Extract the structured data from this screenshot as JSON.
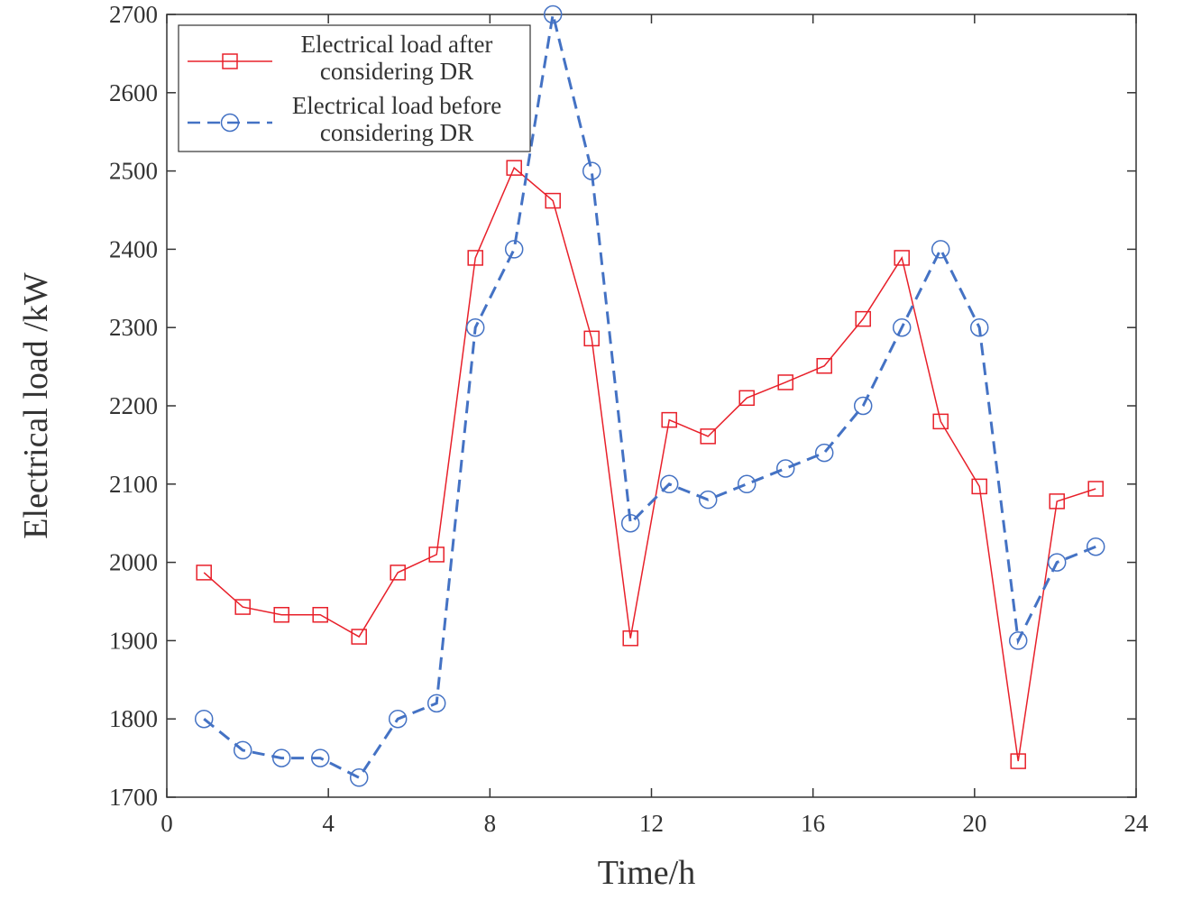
{
  "chart_data": {
    "type": "line",
    "xlabel": "Time/h",
    "ylabel": "Electrical load /kW",
    "x": [
      0.92,
      1.88,
      2.84,
      3.8,
      4.76,
      5.72,
      6.68,
      7.64,
      8.6,
      9.56,
      10.52,
      11.48,
      12.44,
      13.4,
      14.36,
      15.32,
      16.28,
      17.24,
      18.2,
      19.16,
      20.12,
      21.08,
      22.04,
      23.0
    ],
    "series": [
      {
        "name": "Electrical load after considering DR",
        "color": "#e8202a",
        "marker": "square",
        "dash": false,
        "values": [
          1987,
          1943,
          1933,
          1933,
          1905,
          1987,
          2010,
          2389,
          2504,
          2462,
          2286,
          1903,
          2182,
          2161,
          2210,
          2230,
          2251,
          2311,
          2389,
          2180,
          2097,
          1746,
          2078,
          2094
        ]
      },
      {
        "name": "Electrical load before considering DR",
        "color": "#4472c4",
        "marker": "circle",
        "dash": true,
        "values": [
          1800,
          1760,
          1750,
          1750,
          1725,
          1800,
          1820,
          2300,
          2400,
          2700,
          2500,
          2050,
          2100,
          2080,
          2100,
          2120,
          2140,
          2200,
          2300,
          2400,
          2300,
          1900,
          2000,
          2020
        ]
      }
    ],
    "xlim": [
      0,
      24
    ],
    "xticks": [
      0,
      4,
      8,
      12,
      16,
      20,
      24
    ],
    "ylim": [
      1700,
      2700
    ],
    "yticks": [
      1700,
      1800,
      1900,
      2000,
      2100,
      2200,
      2300,
      2400,
      2500,
      2600,
      2700
    ],
    "grid": false,
    "legend": "upper left"
  }
}
